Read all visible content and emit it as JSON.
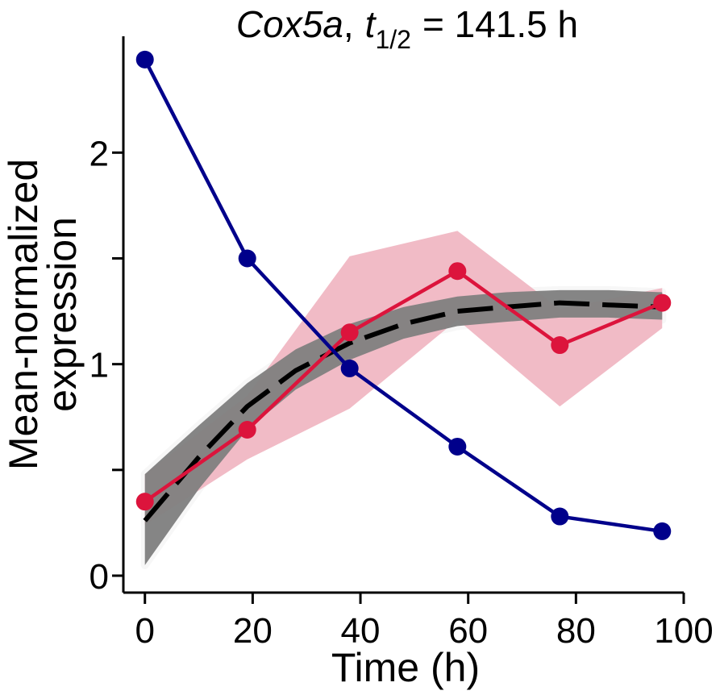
{
  "chart_data": {
    "type": "line",
    "title": {
      "gene": "Cox5a",
      "comma": ",",
      "t": "t",
      "subscript": "1/2",
      "value": "= 141.5 h"
    },
    "xlabel": "Time (h)",
    "ylabel_line1": "Mean-normalized",
    "ylabel_line2": "expression",
    "xlim": [
      -4,
      100
    ],
    "ylim": [
      -0.08,
      2.55
    ],
    "xticks": [
      0,
      20,
      40,
      60,
      80,
      100
    ],
    "xtick_labels": [
      "0",
      "20",
      "40",
      "60",
      "80",
      "100"
    ],
    "yticks": [
      0,
      0.5,
      1,
      1.5,
      2
    ],
    "ytick_labels": [
      "0",
      "",
      "1",
      "",
      "2"
    ],
    "grid": false,
    "series": [
      {
        "color": "#00008b",
        "style": "line-markers",
        "x": [
          0,
          19,
          38,
          58,
          77,
          96
        ],
        "y": [
          2.44,
          1.5,
          0.98,
          0.61,
          0.28,
          0.21
        ]
      },
      {
        "color": "#dc143c",
        "style": "line-markers",
        "x": [
          0,
          19,
          38,
          58,
          77,
          96
        ],
        "y": [
          0.35,
          0.69,
          1.15,
          1.44,
          1.09,
          1.29
        ],
        "band_color": "#f0b4c0",
        "band_lower": [
          0.24,
          0.55,
          0.79,
          1.21,
          0.8,
          1.17
        ],
        "band_upper": [
          0.48,
          0.85,
          1.51,
          1.63,
          1.26,
          1.36
        ]
      },
      {
        "color": "#000000",
        "style": "dashed-fit",
        "x": [
          0,
          10,
          19,
          28,
          38,
          48,
          58,
          67,
          77,
          86,
          96
        ],
        "y": [
          0.26,
          0.56,
          0.8,
          0.97,
          1.1,
          1.19,
          1.25,
          1.27,
          1.29,
          1.28,
          1.27
        ],
        "band_color": "#808080",
        "band_lower": [
          0.05,
          0.41,
          0.69,
          0.88,
          1.02,
          1.12,
          1.18,
          1.2,
          1.22,
          1.22,
          1.21
        ],
        "band_upper": [
          0.48,
          0.71,
          0.91,
          1.07,
          1.19,
          1.27,
          1.32,
          1.34,
          1.35,
          1.35,
          1.34
        ]
      }
    ]
  }
}
